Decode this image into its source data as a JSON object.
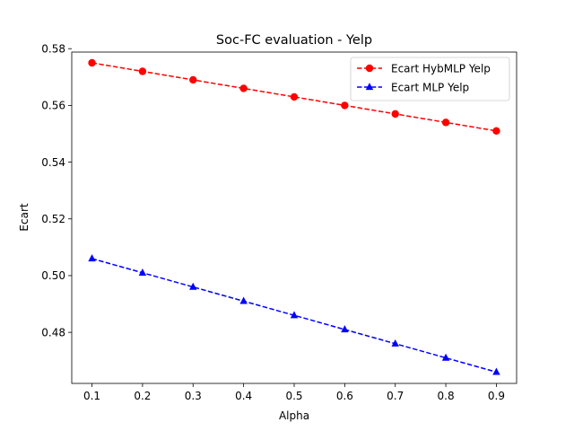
{
  "chart_data": {
    "type": "line",
    "title": "Soc-FC evaluation - Yelp",
    "xlabel": "Alpha",
    "ylabel": "Ecart",
    "x": [
      0.1,
      0.2,
      0.3,
      0.4,
      0.5,
      0.6,
      0.7,
      0.8,
      0.9
    ],
    "xticks": [
      "0.1",
      "0.2",
      "0.3",
      "0.4",
      "0.5",
      "0.6",
      "0.7",
      "0.8",
      "0.9"
    ],
    "yticks": [
      "0.48",
      "0.50",
      "0.52",
      "0.54",
      "0.56",
      "0.58"
    ],
    "xlim": [
      0.06,
      0.94
    ],
    "ylim": [
      0.462,
      0.5788
    ],
    "grid": false,
    "legend_position": "top-right",
    "series": [
      {
        "name": "Ecart HybMLP Yelp",
        "color": "#ff0000",
        "marker": "circle",
        "linestyle": "dashed",
        "values": [
          0.575,
          0.572,
          0.569,
          0.566,
          0.563,
          0.56,
          0.557,
          0.554,
          0.551
        ]
      },
      {
        "name": "Ecart MLP Yelp",
        "color": "#0000ff",
        "marker": "triangle",
        "linestyle": "dashed",
        "values": [
          0.506,
          0.501,
          0.496,
          0.491,
          0.486,
          0.481,
          0.476,
          0.471,
          0.466
        ]
      }
    ]
  }
}
